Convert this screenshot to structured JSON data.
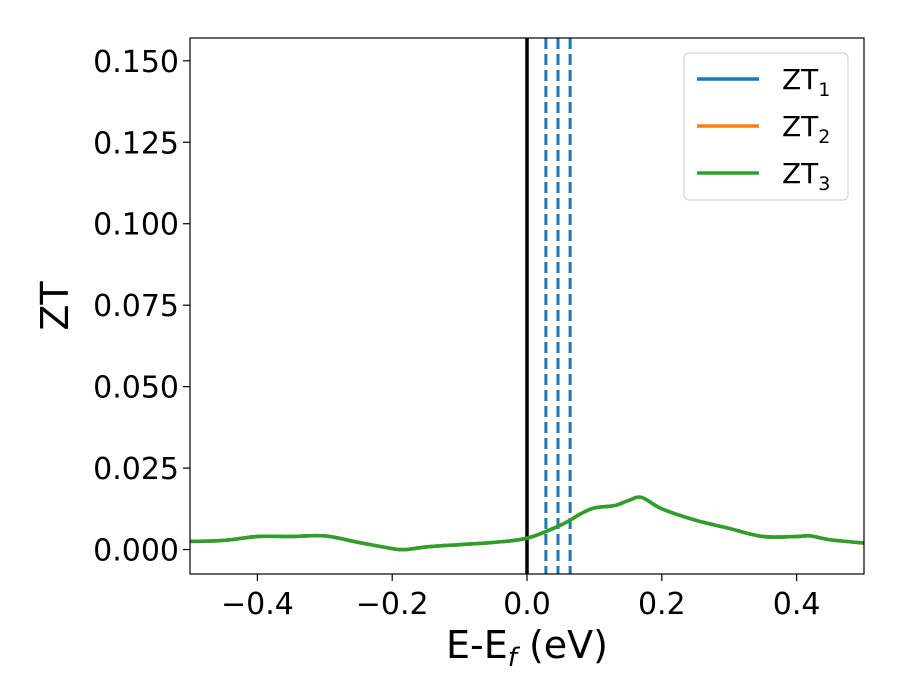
{
  "chart_data": {
    "type": "line",
    "xlabel": "E-E",
    "xlabel_sub": "f",
    "xlabel_unit": " (eV)",
    "ylabel": "ZT",
    "xlim": [
      -0.5,
      0.5
    ],
    "ylim": [
      -0.0075,
      0.157
    ],
    "xticks": [
      -0.4,
      -0.2,
      0.0,
      0.2,
      0.4
    ],
    "xtick_labels": [
      "−0.4",
      "−0.2",
      "0.0",
      "0.2",
      "0.4"
    ],
    "yticks": [
      0.0,
      0.025,
      0.05,
      0.075,
      0.1,
      0.125,
      0.15
    ],
    "ytick_labels": [
      "0.000",
      "0.025",
      "0.050",
      "0.075",
      "0.100",
      "0.125",
      "0.150"
    ],
    "grid": false,
    "legend_position": "top-right",
    "x": [
      -0.5,
      -0.45,
      -0.4,
      -0.35,
      -0.3,
      -0.25,
      -0.2,
      -0.18,
      -0.15,
      -0.1,
      -0.05,
      0.0,
      0.05,
      0.08,
      0.1,
      0.13,
      0.15,
      0.17,
      0.2,
      0.25,
      0.3,
      0.35,
      0.4,
      0.42,
      0.45,
      0.5
    ],
    "series": [
      {
        "name": "ZT",
        "sub": "1",
        "color": "#1f77b4",
        "values": [
          0.0025,
          0.0028,
          0.004,
          0.004,
          0.0042,
          0.0022,
          0.0003,
          0.0,
          0.0008,
          0.0015,
          0.0022,
          0.0035,
          0.0075,
          0.011,
          0.0128,
          0.0135,
          0.015,
          0.016,
          0.0125,
          0.009,
          0.0065,
          0.004,
          0.004,
          0.0042,
          0.003,
          0.002
        ]
      },
      {
        "name": "ZT",
        "sub": "2",
        "color": "#ff7f0e",
        "values": [
          0.0025,
          0.0028,
          0.004,
          0.004,
          0.0042,
          0.0022,
          0.0003,
          0.0,
          0.0008,
          0.0015,
          0.0022,
          0.0035,
          0.0075,
          0.011,
          0.0128,
          0.0135,
          0.015,
          0.016,
          0.0125,
          0.009,
          0.0065,
          0.004,
          0.004,
          0.0042,
          0.003,
          0.002
        ]
      },
      {
        "name": "ZT",
        "sub": "3",
        "color": "#2ca02c",
        "values": [
          0.0025,
          0.0028,
          0.004,
          0.004,
          0.0042,
          0.0022,
          0.0003,
          0.0,
          0.0008,
          0.0015,
          0.0022,
          0.0035,
          0.0075,
          0.011,
          0.0128,
          0.0135,
          0.015,
          0.016,
          0.0125,
          0.009,
          0.0065,
          0.004,
          0.004,
          0.0042,
          0.003,
          0.002
        ]
      }
    ],
    "vlines": [
      {
        "x": 0.0,
        "color": "#000000",
        "style": "solid"
      },
      {
        "x": 0.028,
        "color": "#1f77b4",
        "style": "dashed"
      },
      {
        "x": 0.046,
        "color": "#1f77b4",
        "style": "dashed"
      },
      {
        "x": 0.064,
        "color": "#1f77b4",
        "style": "dashed"
      }
    ]
  }
}
